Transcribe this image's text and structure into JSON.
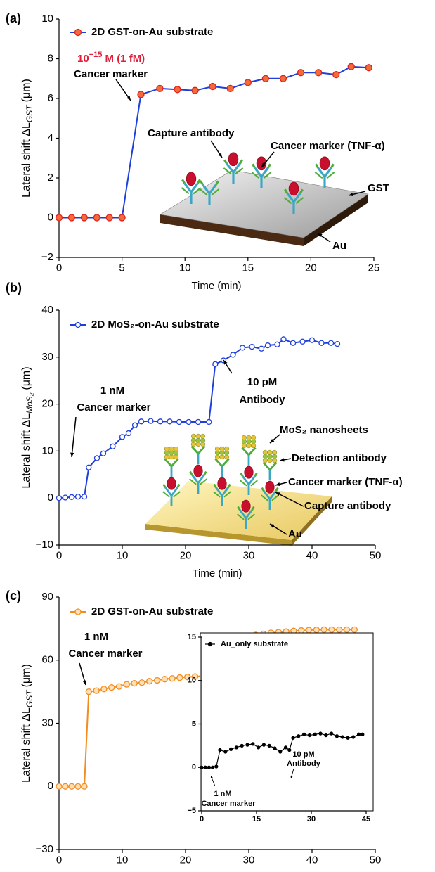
{
  "chart_data": [
    {
      "type": "line",
      "panel_label": "(a)",
      "x": [
        0,
        1,
        2,
        3,
        4,
        5,
        6.5,
        8,
        9.4,
        10.8,
        12.2,
        13.6,
        15,
        16.4,
        17.8,
        19.2,
        20.6,
        22,
        23.2,
        24.6
      ],
      "series": [
        {
          "name": "2D GST-on-Au substrate",
          "color": "#1f3fdc",
          "marker_fill": "#f26b3a",
          "marker_edge": "#e0201b",
          "values": [
            0,
            0,
            0,
            0,
            0,
            0,
            6.2,
            6.5,
            6.45,
            6.4,
            6.6,
            6.5,
            6.8,
            7.0,
            7.0,
            7.3,
            7.3,
            7.2,
            7.6,
            7.55
          ]
        }
      ],
      "xlim": [
        0,
        25
      ],
      "xticks": [
        0,
        5,
        10,
        15,
        20,
        25
      ],
      "ylim": [
        -2,
        10
      ],
      "yticks": [
        {
          "value": -2,
          "label": "−2"
        },
        0,
        2,
        4,
        6,
        8,
        10
      ],
      "xlabel": "Time (min)",
      "ylabel": {
        "main": "Lateral shift ΔL",
        "sub": "GST",
        "unit": "(μm)"
      },
      "concentration": {
        "base": "10",
        "exponent": "−15",
        "unit": " M (1 fM)",
        "color": "#e0203a"
      },
      "annotations": [
        "Cancer marker",
        "Capture antibody",
        "Cancer marker (TNF-α)",
        "GST",
        "Au"
      ]
    },
    {
      "type": "line",
      "panel_label": "(b)",
      "x": [
        0,
        1,
        2,
        3,
        4,
        4.7,
        6,
        7,
        8.5,
        10,
        11,
        12,
        13,
        14.5,
        16,
        17.5,
        19,
        20.5,
        22,
        23.7,
        24.7,
        26,
        27.5,
        29,
        30.5,
        32,
        33,
        34.5,
        35.5,
        37,
        38.5,
        40,
        41.5,
        43,
        44
      ],
      "series": [
        {
          "name": "2D MoS₂-on-Au substrate",
          "color": "#1f3fdc",
          "marker_fill": "#ffffff",
          "marker_edge": "#1f3fdc",
          "values": [
            0,
            0.1,
            0.2,
            0.3,
            0.3,
            6.5,
            8.5,
            9.5,
            11,
            13,
            13.8,
            15.5,
            16.3,
            16.4,
            16.3,
            16.3,
            16.2,
            16.2,
            16.2,
            16.2,
            28.5,
            29.3,
            30.5,
            32,
            32.2,
            31.8,
            32.5,
            32.7,
            33.8,
            33,
            33.3,
            33.6,
            33,
            33,
            32.8
          ]
        }
      ],
      "xlim": [
        0,
        50
      ],
      "xticks": [
        0,
        10,
        20,
        30,
        40,
        50
      ],
      "ylim": [
        -10,
        40
      ],
      "yticks": [
        {
          "value": -10,
          "label": "−10"
        },
        0,
        10,
        20,
        30,
        40
      ],
      "xlabel": "Time (min)",
      "ylabel": {
        "main": "Lateral shift ΔL",
        "sub": "MoS₂",
        "unit": "(μm)"
      },
      "annotations": [
        "1 nM",
        "Cancer marker",
        "10 pM",
        "Antibody",
        "MoS₂ nanosheets",
        "Detection antibody",
        "Cancer marker (TNF-α)",
        "Capture antibody",
        "Au"
      ]
    },
    {
      "type": "line",
      "panel_label": "(c)",
      "x": [
        0,
        1,
        2,
        3,
        4,
        4.7,
        5.9,
        7.1,
        8.3,
        9.5,
        10.7,
        11.9,
        13.1,
        14.3,
        15.5,
        16.7,
        17.9,
        19.1,
        20.3,
        21.5,
        22.7,
        23.9,
        25.1,
        26.3,
        27.5,
        28.7,
        29.9,
        31.1,
        32.3,
        33.5,
        34.7,
        35.9,
        37.1,
        38.3,
        39.5,
        40.7,
        41.9,
        43.1,
        44.3,
        45.5,
        46.7
      ],
      "series": [
        {
          "name": "2D GST-on-Au substrate",
          "color": "#f28c1e",
          "marker_fill": "#fde0b8",
          "marker_edge": "#f28c1e",
          "values": [
            0,
            0,
            0,
            0,
            0,
            45,
            45.5,
            46.3,
            47,
            47.5,
            48.5,
            49,
            49.3,
            50,
            50.4,
            51,
            51.3,
            51.7,
            52,
            52.2,
            52.4,
            52.5,
            68,
            69,
            69.8,
            70.5,
            71.2,
            72,
            72.5,
            73,
            73.3,
            73.6,
            73.9,
            74.1,
            74.3,
            74.4,
            74.5,
            74.5,
            74.5,
            74.5,
            74.5
          ]
        }
      ],
      "xlim": [
        0,
        50
      ],
      "xticks": [
        0,
        10,
        20,
        30,
        40,
        50
      ],
      "ylim": [
        -30,
        90
      ],
      "yticks": [
        {
          "value": -30,
          "label": "−30"
        },
        0,
        30,
        60,
        90
      ],
      "xlabel": "Time (min)",
      "ylabel": {
        "main": "Lateral shift ΔL",
        "sub": "GST",
        "unit": "(μm)"
      },
      "annotations": [
        "1 nM",
        "Cancer marker",
        "10 pM",
        "Antibody"
      ]
    },
    {
      "type": "line",
      "x": [
        0,
        1,
        2,
        3,
        4,
        5,
        6.5,
        8,
        9.5,
        11,
        12.5,
        14,
        15.5,
        17,
        18.5,
        20,
        21.5,
        23,
        24,
        25,
        26.5,
        28,
        29.5,
        31,
        32.5,
        34,
        35.5,
        37,
        38.5,
        40,
        41.5,
        43,
        44
      ],
      "series": [
        {
          "name": "Au_only substrate",
          "color": "#000000",
          "marker_fill": "#000000",
          "marker_edge": "#000000",
          "values": [
            0,
            0,
            0,
            0,
            0.1,
            2,
            1.8,
            2.1,
            2.3,
            2.5,
            2.6,
            2.7,
            2.3,
            2.6,
            2.5,
            2.2,
            1.8,
            2.3,
            2.0,
            3.4,
            3.6,
            3.8,
            3.7,
            3.8,
            3.9,
            3.7,
            3.9,
            3.6,
            3.5,
            3.4,
            3.5,
            3.8,
            3.8
          ]
        }
      ],
      "xlim": [
        0,
        45
      ],
      "xticks": [
        0,
        15,
        30,
        45
      ],
      "ylim": [
        -5,
        15
      ],
      "yticks": [
        {
          "value": -5,
          "label": "−5"
        },
        0,
        5,
        10,
        15
      ],
      "annotations": [
        "10 pM",
        "Antibody",
        "1 nM",
        "Cancer marker"
      ]
    }
  ]
}
